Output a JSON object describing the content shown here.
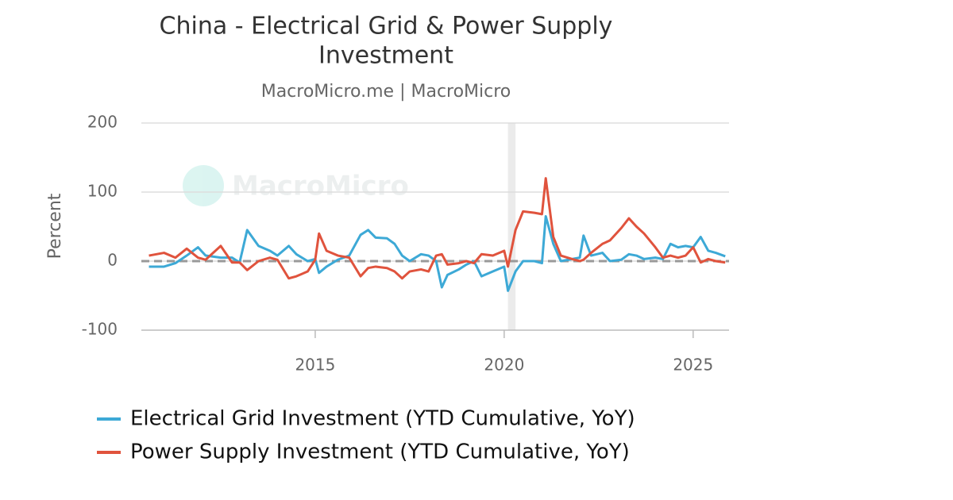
{
  "chart_data": {
    "type": "line",
    "title": [
      "China - Electrical Grid & Power Supply",
      "Investment"
    ],
    "subtitle": "MacroMicro.me | MacroMicro",
    "watermark": "MacroMicro",
    "y_label": "Percent",
    "x": [
      2010.6,
      2011.0,
      2011.3,
      2011.6,
      2011.9,
      2012.1,
      2012.5,
      2012.8,
      2013.0,
      2013.2,
      2013.5,
      2013.8,
      2014.0,
      2014.3,
      2014.5,
      2014.8,
      2015.0,
      2015.1,
      2015.3,
      2015.6,
      2015.9,
      2016.2,
      2016.4,
      2016.6,
      2016.9,
      2017.1,
      2017.3,
      2017.5,
      2017.8,
      2018.0,
      2018.2,
      2018.35,
      2018.5,
      2018.8,
      2019.0,
      2019.2,
      2019.4,
      2019.7,
      2020.0,
      2020.1,
      2020.3,
      2020.5,
      2020.8,
      2021.0,
      2021.1,
      2021.3,
      2021.5,
      2021.8,
      2022.0,
      2022.1,
      2022.3,
      2022.6,
      2022.8,
      2023.1,
      2023.3,
      2023.5,
      2023.7,
      2024.0,
      2024.2,
      2024.4,
      2024.6,
      2024.8,
      2025.0,
      2025.2,
      2025.4,
      2025.6,
      2025.85
    ],
    "series": [
      {
        "name": "Electrical Grid Investment (YTD Cumulative, YoY)",
        "color": "#3da9d6",
        "values": [
          -8,
          -8,
          -3,
          8,
          20,
          8,
          5,
          5,
          -2,
          45,
          22,
          15,
          8,
          22,
          10,
          0,
          3,
          -17,
          -8,
          2,
          8,
          38,
          45,
          34,
          33,
          25,
          8,
          0,
          10,
          8,
          0,
          -38,
          -20,
          -12,
          -5,
          0,
          -22,
          -15,
          -8,
          -43,
          -15,
          0,
          0,
          -3,
          65,
          25,
          0,
          3,
          5,
          37,
          8,
          12,
          0,
          2,
          10,
          8,
          3,
          5,
          3,
          25,
          20,
          22,
          20,
          35,
          15,
          12,
          7
        ]
      },
      {
        "name": "Power Supply Investment (YTD Cumulative, YoY)",
        "color": "#e0533d",
        "values": [
          8,
          12,
          5,
          18,
          5,
          2,
          22,
          -2,
          -2,
          -13,
          0,
          5,
          2,
          -25,
          -22,
          -15,
          2,
          40,
          15,
          8,
          5,
          -22,
          -10,
          -8,
          -10,
          -15,
          -25,
          -15,
          -12,
          -15,
          8,
          10,
          -5,
          -3,
          0,
          -3,
          10,
          8,
          15,
          -8,
          45,
          72,
          70,
          68,
          120,
          35,
          8,
          3,
          0,
          2,
          12,
          25,
          30,
          48,
          62,
          50,
          40,
          20,
          5,
          8,
          5,
          8,
          20,
          -2,
          3,
          0,
          -2
        ]
      }
    ],
    "xlim": [
      2010.4,
      2025.95
    ],
    "xticks": [
      2015,
      2020,
      2025
    ],
    "ylim": [
      -100,
      200
    ],
    "yticks": [
      -100,
      0,
      100,
      200
    ],
    "grid": true,
    "highlight": {
      "xlim": [
        2020.1,
        2020.3
      ],
      "color": "#ebebeb"
    },
    "legend": "bottom"
  }
}
